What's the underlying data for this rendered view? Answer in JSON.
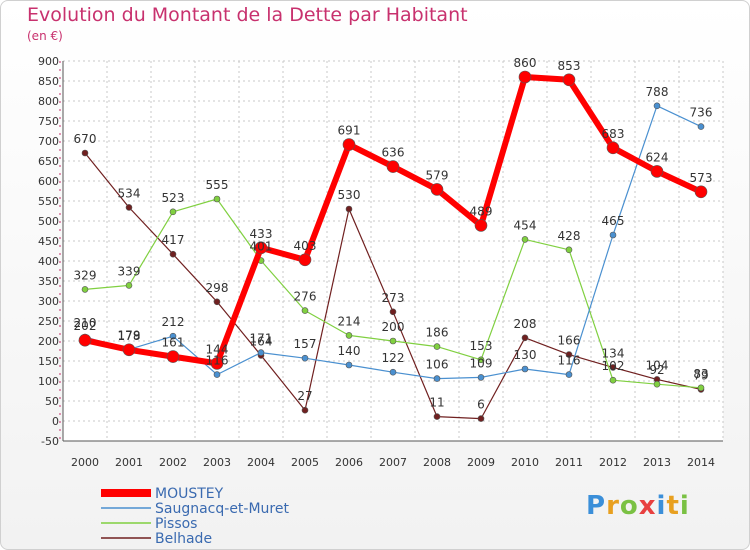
{
  "title": "Evolution du Montant de la Dette par Habitant",
  "unit": "(en €)",
  "logo": "Proxiti",
  "chart_data": {
    "type": "line",
    "title": "Evolution du Montant de la Dette par Habitant",
    "subtitle": "(en €)",
    "x": [
      "2000",
      "2001",
      "2002",
      "2003",
      "2004",
      "2005",
      "2006",
      "2007",
      "2008",
      "2009",
      "2010",
      "2011",
      "2012",
      "2013",
      "2014"
    ],
    "ylim": [
      -50,
      900
    ],
    "yticks": [
      900,
      850,
      800,
      750,
      700,
      650,
      600,
      550,
      500,
      450,
      400,
      350,
      300,
      250,
      200,
      150,
      100,
      50,
      0,
      -50
    ],
    "grid": true,
    "legend_position": "bottom-left",
    "series": [
      {
        "name": "MOUSTEY",
        "color": "#ff0000",
        "values": [
          202,
          178,
          161,
          144,
          433,
          403,
          691,
          636,
          579,
          489,
          860,
          853,
          683,
          624,
          573
        ]
      },
      {
        "name": "Saugnacq-et-Muret",
        "color": "#4a90d0",
        "values": [
          210,
          179,
          212,
          116,
          171,
          157,
          140,
          122,
          106,
          109,
          130,
          116,
          465,
          788,
          736
        ]
      },
      {
        "name": "Pissos",
        "color": "#80d040",
        "values": [
          329,
          339,
          523,
          555,
          401,
          276,
          214,
          200,
          186,
          153,
          454,
          428,
          102,
          92,
          83
        ]
      },
      {
        "name": "Belhade",
        "color": "#702020",
        "values": [
          670,
          534,
          417,
          298,
          164,
          27,
          530,
          273,
          11,
          6,
          208,
          166,
          134,
          104,
          79
        ]
      }
    ]
  }
}
